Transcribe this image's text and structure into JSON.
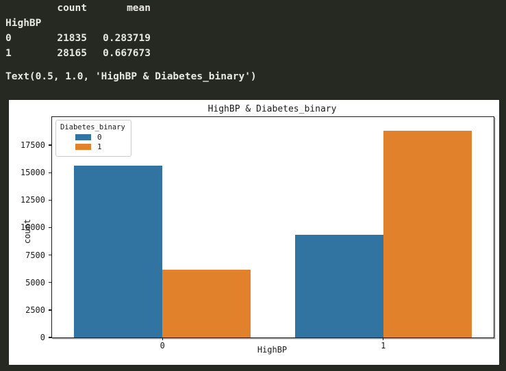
{
  "console": {
    "table": {
      "columns": [
        "count",
        "mean"
      ],
      "index_name": "HighBP",
      "rows": [
        {
          "index": "0",
          "count": "21835",
          "mean": "0.283719"
        },
        {
          "index": "1",
          "count": "28165",
          "mean": "0.667673"
        }
      ]
    },
    "repr_line": "Text(0.5, 1.0, 'HighBP & Diabetes_binary')"
  },
  "chart_data": {
    "type": "bar",
    "title": "HighBP & Diabetes_binary",
    "xlabel": "HighBP",
    "ylabel": "count",
    "categories": [
      "0",
      "1"
    ],
    "series": [
      {
        "name": "0",
        "color": "#3274a1",
        "values": [
          15640,
          9360
        ]
      },
      {
        "name": "1",
        "color": "#e1812c",
        "values": [
          6195,
          18805
        ]
      }
    ],
    "yticks": [
      0,
      2500,
      5000,
      7500,
      10000,
      12500,
      15000,
      17500
    ],
    "ylim": [
      0,
      20060
    ],
    "legend_title": "Diabetes_binary",
    "legend_position": "upper-left",
    "grid": false,
    "background": "#ffffff",
    "page_background": "#262822"
  }
}
